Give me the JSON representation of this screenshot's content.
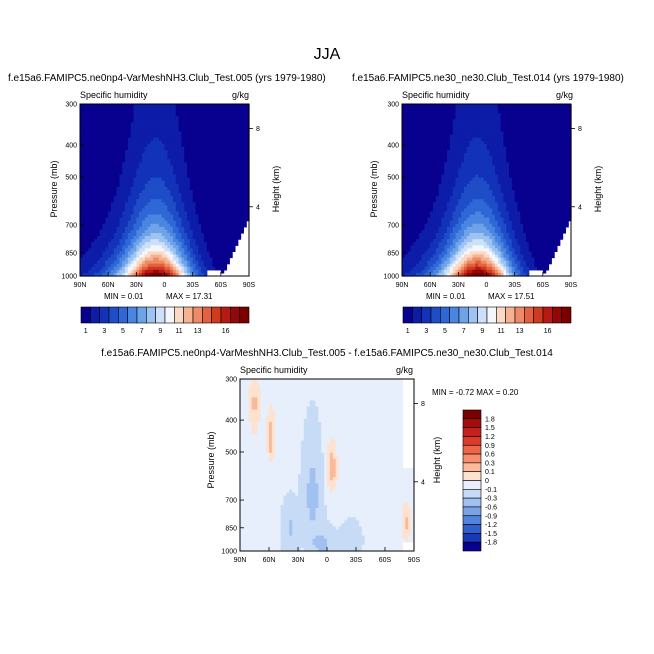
{
  "figure": {
    "title": "JJA",
    "colors": {
      "ink": "#000000",
      "fill_low": "#08008f",
      "fill_high": "#7a0000"
    }
  },
  "chart_data": [
    {
      "type": "heatmap",
      "title": "f.e15a6.FAMIPC5.ne0np4-VarMeshNH3.Club_Test.005 (yrs 1979-1980)",
      "left_label": "Specific humidity",
      "units": "g/kg",
      "ylabel": "Pressure (mb)",
      "y2label": "Height (km)",
      "x_ticks": [
        "90N",
        "60N",
        "30N",
        "0",
        "30S",
        "60S",
        "90S"
      ],
      "y_ticks": [
        "300",
        "400",
        "500",
        "700",
        "850",
        "1000"
      ],
      "y2_ticks": [
        "8",
        "4"
      ],
      "min_text": "MIN =  0.01",
      "max_text": "MAX =  17.31",
      "colorbar_labels": [
        "1",
        "3",
        "5",
        "7",
        "9",
        "11",
        "13",
        "16"
      ],
      "peak": 17.31
    },
    {
      "type": "heatmap",
      "title": "f.e15a6.FAMIPC5.ne30_ne30.Club_Test.014 (yrs 1979-1980)",
      "left_label": "Specific humidity",
      "units": "g/kg",
      "ylabel": "Pressure (mb)",
      "y2label": "Height (km)",
      "x_ticks": [
        "90N",
        "60N",
        "30N",
        "0",
        "30S",
        "60S",
        "90S"
      ],
      "y_ticks": [
        "300",
        "400",
        "500",
        "700",
        "850",
        "1000"
      ],
      "y2_ticks": [
        "8",
        "4"
      ],
      "min_text": "MIN =  0.01",
      "max_text": "MAX =  17.51",
      "colorbar_labels": [
        "1",
        "3",
        "5",
        "7",
        "9",
        "11",
        "13",
        "16"
      ],
      "peak": 17.51
    },
    {
      "type": "heatmap",
      "title": "f.e15a6.FAMIPC5.ne0np4-VarMeshNH3.Club_Test.005 - f.e15a6.FAMIPC5.ne30_ne30.Club_Test.014",
      "left_label": "Specific humidity",
      "units": "g/kg",
      "ylabel": "Pressure (mb)",
      "y2label": "Height (km)",
      "x_ticks": [
        "90N",
        "60N",
        "30N",
        "0",
        "30S",
        "60S",
        "90S"
      ],
      "y_ticks": [
        "300",
        "400",
        "500",
        "700",
        "850",
        "1000"
      ],
      "y2_ticks": [
        "8",
        "4"
      ],
      "minmax_text": "MIN = -0.72  MAX =  0.20",
      "colorbar_labels": [
        "1.8",
        "1.5",
        "1.2",
        "0.9",
        "0.6",
        "0.3",
        "0.1",
        "0",
        "-0.1",
        "-0.3",
        "-0.6",
        "-0.9",
        "-1.2",
        "-1.5",
        "-1.8"
      ]
    }
  ]
}
